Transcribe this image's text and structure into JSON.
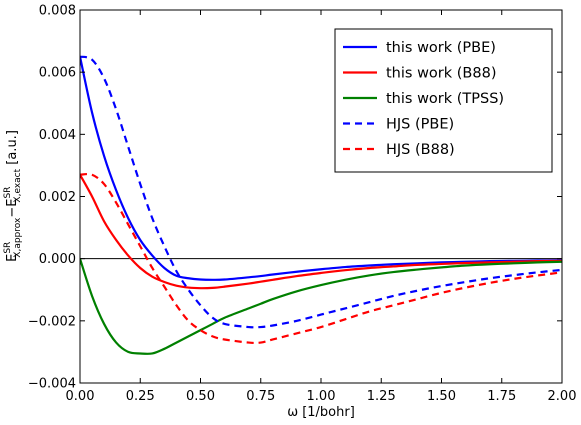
{
  "chart_data": {
    "type": "line",
    "xlabel": "ω [1/bohr]",
    "ylabel_parts": {
      "e1": "E",
      "sup1": "SR",
      "sub1": "X,approx",
      "minus": "−",
      "e2": "E",
      "sup2": "SR",
      "sub2": "X,exact",
      "unit": " [a.u.]"
    },
    "xlim": [
      0.0,
      2.0
    ],
    "ylim": [
      -0.004,
      0.008
    ],
    "xticks": [
      0.0,
      0.25,
      0.5,
      0.75,
      1.0,
      1.25,
      1.5,
      1.75,
      2.0
    ],
    "xtick_labels": [
      "0.00",
      "0.25",
      "0.50",
      "0.75",
      "1.00",
      "1.25",
      "1.50",
      "1.75",
      "2.00"
    ],
    "yticks": [
      -0.004,
      -0.002,
      0.0,
      0.002,
      0.004,
      0.006,
      0.008
    ],
    "ytick_labels": [
      "−0.004",
      "−0.002",
      "0.000",
      "0.002",
      "0.004",
      "0.006",
      "0.008"
    ],
    "zero_line": true,
    "grid": false,
    "legend_position": "top-right",
    "x": [
      0.0,
      0.05,
      0.1,
      0.15,
      0.2,
      0.25,
      0.3,
      0.35,
      0.4,
      0.45,
      0.5,
      0.55,
      0.6,
      0.7,
      0.75,
      0.8,
      0.9,
      1.0,
      1.1,
      1.2,
      1.3,
      1.4,
      1.5,
      1.6,
      1.7,
      1.8,
      1.9,
      2.0
    ],
    "series": [
      {
        "name": "this work (PBE)",
        "color": "#0000ff",
        "dash": "solid",
        "values": [
          0.0065,
          0.0047,
          0.0033,
          0.0022,
          0.0013,
          0.0006,
          0.0001,
          -0.0003,
          -0.00055,
          -0.00063,
          -0.00067,
          -0.00068,
          -0.00067,
          -0.0006,
          -0.00056,
          -0.00051,
          -0.00042,
          -0.00034,
          -0.00027,
          -0.00022,
          -0.00018,
          -0.00015,
          -0.00012,
          -0.0001,
          -8e-05,
          -7e-05,
          -6e-05,
          -5e-05
        ]
      },
      {
        "name": "this work (B88)",
        "color": "#ff0000",
        "dash": "solid",
        "values": [
          0.0027,
          0.002,
          0.0012,
          0.0006,
          0.0001,
          -0.0003,
          -0.00058,
          -0.00075,
          -0.00087,
          -0.00093,
          -0.00095,
          -0.00094,
          -0.0009,
          -0.0008,
          -0.00074,
          -0.00068,
          -0.00056,
          -0.00046,
          -0.00037,
          -0.0003,
          -0.00025,
          -0.0002,
          -0.00017,
          -0.00014,
          -0.00012,
          -0.0001,
          -8e-05,
          -7e-05
        ]
      },
      {
        "name": "this work (TPSS)",
        "color": "#008000",
        "dash": "solid",
        "values": [
          0.0,
          -0.0012,
          -0.0021,
          -0.0027,
          -0.003,
          -0.00305,
          -0.00305,
          -0.0029,
          -0.0027,
          -0.0025,
          -0.0023,
          -0.0021,
          -0.0019,
          -0.0016,
          -0.00145,
          -0.0013,
          -0.00105,
          -0.00085,
          -0.00068,
          -0.00054,
          -0.00043,
          -0.00035,
          -0.00028,
          -0.00022,
          -0.00018,
          -0.00015,
          -0.00012,
          -0.0001
        ]
      },
      {
        "name": "HJS (PBE)",
        "color": "#0000ff",
        "dash": "dashed",
        "values": [
          0.0065,
          0.0064,
          0.0058,
          0.0048,
          0.0036,
          0.0024,
          0.0013,
          0.0004,
          -0.0004,
          -0.001,
          -0.0015,
          -0.0019,
          -0.0021,
          -0.0022,
          -0.0022,
          -0.00215,
          -0.002,
          -0.0018,
          -0.0016,
          -0.0014,
          -0.0012,
          -0.00103,
          -0.00088,
          -0.00075,
          -0.00063,
          -0.00053,
          -0.00044,
          -0.00036
        ]
      },
      {
        "name": "HJS (B88)",
        "color": "#ff0000",
        "dash": "dashed",
        "values": [
          0.0027,
          0.0027,
          0.0024,
          0.0018,
          0.0011,
          0.0004,
          -0.0003,
          -0.0009,
          -0.0015,
          -0.002,
          -0.0023,
          -0.0025,
          -0.0026,
          -0.0027,
          -0.0027,
          -0.0026,
          -0.0024,
          -0.0022,
          -0.00195,
          -0.0017,
          -0.0015,
          -0.0013,
          -0.0011,
          -0.00093,
          -0.00078,
          -0.00065,
          -0.00054,
          -0.00044
        ]
      }
    ]
  }
}
